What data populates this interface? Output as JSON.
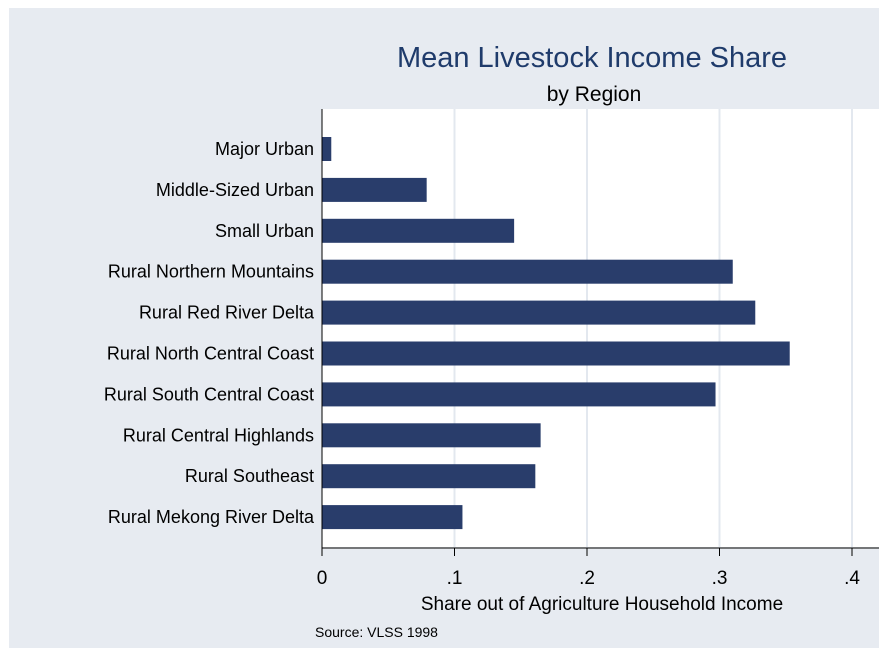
{
  "chart_data": {
    "type": "bar",
    "orientation": "horizontal",
    "title": "Mean Livestock Income Share",
    "subtitle": "by Region",
    "xlabel": "Share out of Agriculture Household Income",
    "note": "Source: VLSS 1998",
    "categories": [
      "Major Urban",
      "Middle-Sized Urban",
      "Small Urban",
      "Rural Northern Mountains",
      "Rural Red River Delta",
      "Rural North Central Coast",
      "Rural South Central Coast",
      "Rural Central Highlands",
      "Rural Southeast",
      "Rural Mekong River Delta"
    ],
    "values": [
      0.007,
      0.079,
      0.145,
      0.31,
      0.327,
      0.353,
      0.297,
      0.165,
      0.161,
      0.106
    ],
    "xlim": [
      0,
      0.4
    ],
    "xticks": [
      0,
      0.1,
      0.2,
      0.3,
      0.4
    ],
    "xtick_labels": [
      "0",
      ".1",
      ".2",
      ".3",
      ".4"
    ],
    "grid": true,
    "colors": {
      "bar": "#293d6b",
      "plot_background": "#ffffff",
      "outer_background": "#e7ebf1",
      "grid": "#e3e8ef",
      "title": "#1f3b6b"
    }
  }
}
